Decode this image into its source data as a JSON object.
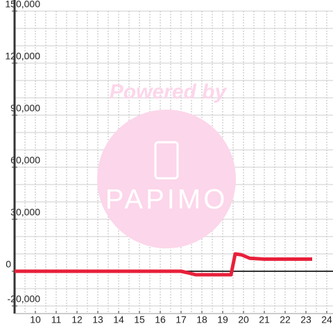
{
  "chart_data": {
    "type": "line",
    "watermark": [
      "Powered by",
      "PAPIMO"
    ],
    "x": [
      9,
      17,
      17.3,
      17.7,
      18,
      19,
      19.4,
      19.6,
      19.9,
      20.3,
      21,
      22,
      23.3
    ],
    "series": [
      {
        "color": "#e8203a",
        "values": [
          0,
          0,
          -800,
          -2000,
          -2000,
          -2000,
          -2000,
          10000,
          9500,
          7500,
          7000,
          7000,
          7000
        ]
      }
    ],
    "xlim": [
      9,
      24.3
    ],
    "xticks": [
      10,
      11,
      12,
      13,
      14,
      15,
      16,
      17,
      18,
      19,
      20,
      21,
      22,
      23,
      24
    ],
    "ylim": [
      -20000,
      150000
    ],
    "yticks": [
      {
        "value": -20000,
        "label": "-20,000"
      },
      0,
      {
        "value": 30000,
        "label": "30,000"
      },
      {
        "value": 60000,
        "label": "60,000"
      },
      {
        "value": 90000,
        "label": "90,000"
      },
      {
        "value": 120000,
        "label": "120,000"
      },
      {
        "value": 150000,
        "label": "150,000"
      }
    ],
    "y_minor_ticks": [
      -10000,
      10000,
      20000,
      40000,
      50000,
      70000,
      80000,
      100000,
      110000,
      130000,
      140000
    ],
    "grid": true
  }
}
